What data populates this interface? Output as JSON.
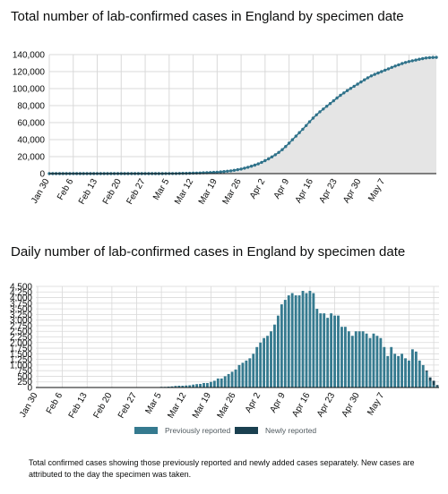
{
  "charts": {
    "cumulative_title": "Total number of lab-confirmed cases in England by specimen date",
    "daily_title": "Daily number of lab-confirmed cases in England by specimen date",
    "legend": {
      "previous": "Previously reported",
      "new": "Newly reported"
    },
    "caption": "Total confirmed cases showing those previously reported and newly added cases separately. New cases are attributed to the day the specimen was taken."
  },
  "colors": {
    "previous": "#357a8f",
    "new": "#1a4050",
    "area": "#e5e5e5",
    "line": "#2f728a",
    "grid": "#d9d9d9"
  },
  "chart_data": [
    {
      "type": "area",
      "title": "Total number of lab-confirmed cases in England by specimen date",
      "x_start": "Jan 30",
      "x_tick_labels": [
        "Jan 30",
        "Feb 6",
        "Feb 13",
        "Feb 20",
        "Feb 27",
        "Mar 5",
        "Mar 12",
        "Mar 19",
        "Mar 26",
        "Apr 2",
        "Apr 9",
        "Apr 16",
        "Apr 23",
        "Apr 30",
        "May 7"
      ],
      "y_tick_labels": [
        "0",
        "20,000",
        "40,000",
        "60,000",
        "80,000",
        "100,000",
        "120,000",
        "140,000"
      ],
      "ylim": [
        0,
        140000
      ],
      "grid": true,
      "values": [
        0,
        0,
        0,
        0,
        0,
        0,
        0,
        0,
        0,
        0,
        0,
        0,
        0,
        0,
        0,
        0,
        0,
        0,
        0,
        0,
        0,
        0,
        0,
        0,
        0,
        0,
        0,
        0,
        0,
        0,
        10,
        20,
        30,
        40,
        60,
        80,
        110,
        150,
        200,
        270,
        350,
        430,
        520,
        620,
        750,
        900,
        1050,
        1250,
        1450,
        1700,
        2000,
        2400,
        2800,
        3300,
        3900,
        4600,
        5400,
        6400,
        7500,
        8700,
        10000,
        11500,
        13300,
        15300,
        17400,
        19700,
        22200,
        25000,
        28200,
        31900,
        35800,
        39900,
        44100,
        48200,
        52200,
        56500,
        61000,
        65300,
        69200,
        72700,
        76000,
        79300,
        82400,
        85700,
        88900,
        92100,
        95000,
        97700,
        100200,
        102700,
        105300,
        107800,
        110300,
        112700,
        114900,
        116700,
        118300,
        120000,
        121700,
        123300,
        125000,
        126500,
        128000,
        129500,
        130700,
        131800,
        132700,
        133600,
        134500,
        135300,
        136000,
        136400,
        136600,
        136700
      ]
    },
    {
      "type": "bar",
      "title": "Daily number of lab-confirmed cases in England by specimen date",
      "x_start": "Jan 30",
      "x_tick_labels": [
        "Jan 30",
        "Feb 6",
        "Feb 13",
        "Feb 20",
        "Feb 27",
        "Mar 5",
        "Mar 12",
        "Mar 19",
        "Mar 26",
        "Apr 2",
        "Apr 9",
        "Apr 16",
        "Apr 23",
        "Apr 30",
        "May 7"
      ],
      "y_tick_labels": [
        "0",
        "250",
        "500",
        "750",
        "1,000",
        "1,250",
        "1,500",
        "1,750",
        "2,000",
        "2,250",
        "2,500",
        "2,750",
        "3,000",
        "3,250",
        "3,500",
        "3,750",
        "4,000",
        "4,250",
        "4,500"
      ],
      "ylim": [
        0,
        4500
      ],
      "grid": true,
      "series": [
        {
          "name": "Previously reported",
          "values": [
            0,
            0,
            0,
            0,
            0,
            0,
            0,
            0,
            0,
            0,
            0,
            0,
            0,
            0,
            0,
            0,
            0,
            0,
            0,
            0,
            0,
            0,
            0,
            0,
            0,
            0,
            0,
            0,
            0,
            0,
            10,
            10,
            10,
            10,
            20,
            30,
            30,
            40,
            50,
            70,
            80,
            80,
            90,
            100,
            130,
            150,
            160,
            200,
            200,
            250,
            300,
            400,
            400,
            500,
            600,
            700,
            800,
            1000,
            1100,
            1200,
            1300,
            1500,
            1800,
            2000,
            2200,
            2300,
            2500,
            2800,
            3200,
            3700,
            3900,
            4100,
            4200,
            4100,
            4100,
            4300,
            4200,
            4300,
            4200,
            3500,
            3300,
            3300,
            3100,
            3300,
            3200,
            3200,
            2700,
            2700,
            2500,
            2300,
            2500,
            2500,
            2500,
            2400,
            2200,
            2400,
            2300,
            2200,
            1800,
            1400,
            1800,
            1500,
            1400,
            1500,
            1300,
            1200,
            1700,
            1600,
            1200,
            1000,
            700,
            300,
            100,
            50
          ]
        },
        {
          "name": "Newly reported",
          "values": [
            0,
            0,
            0,
            0,
            0,
            0,
            0,
            0,
            0,
            0,
            0,
            0,
            0,
            0,
            0,
            0,
            0,
            0,
            0,
            0,
            0,
            0,
            0,
            0,
            0,
            0,
            0,
            0,
            0,
            0,
            0,
            0,
            0,
            0,
            0,
            0,
            0,
            0,
            0,
            0,
            0,
            0,
            0,
            0,
            0,
            0,
            0,
            0,
            0,
            0,
            0,
            0,
            0,
            0,
            0,
            0,
            0,
            0,
            0,
            0,
            0,
            0,
            0,
            0,
            0,
            0,
            0,
            0,
            0,
            0,
            0,
            0,
            0,
            0,
            0,
            0,
            0,
            0,
            0,
            0,
            0,
            0,
            0,
            0,
            0,
            0,
            0,
            0,
            0,
            0,
            0,
            0,
            0,
            0,
            0,
            0,
            0,
            0,
            0,
            0,
            0,
            0,
            0,
            0,
            0,
            0,
            0,
            0,
            0,
            0,
            50,
            150,
            200,
            60
          ]
        }
      ]
    }
  ]
}
